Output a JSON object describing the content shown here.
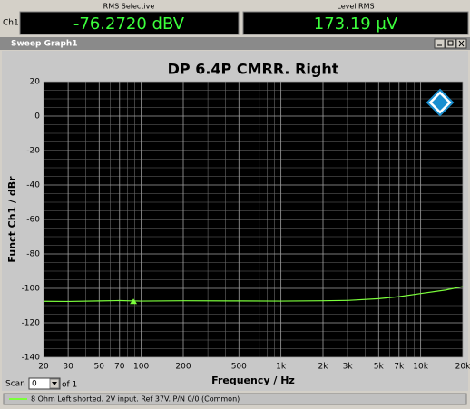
{
  "toolbar": {
    "channel": "Ch1",
    "readouts": [
      {
        "label": "RMS Selective",
        "value": "-76.2720 dBV"
      },
      {
        "label": "Level RMS",
        "value": "173.19 µV"
      }
    ]
  },
  "window": {
    "title": "Sweep Graph1"
  },
  "chart_data": {
    "type": "line",
    "title": "DP 6.4P CMRR. Right",
    "x_label": "Frequency / Hz",
    "y_label": "Funct Ch1 / dBr",
    "x_scale": "log",
    "grid": true,
    "x": [
      20,
      30,
      50,
      70,
      100,
      200,
      500,
      1000,
      2000,
      3000,
      5000,
      7000,
      10000,
      15000,
      20000
    ],
    "series": [
      {
        "name": "8 Ohm Left shorted. 2V input. Ref 37V. P/N 0/0 (Common)",
        "color": "#7cff3c",
        "values": [
          -107.5,
          -107.6,
          -107.3,
          -107.1,
          -107.4,
          -107.2,
          -107.3,
          -107.4,
          -107.2,
          -107,
          -106,
          -104.8,
          -103,
          -101,
          -99
        ]
      }
    ],
    "marker": {
      "x": 88,
      "y": -107.5
    },
    "xlim": [
      20,
      20000
    ],
    "ylim": [
      -140,
      20
    ],
    "xticks": [
      20,
      30,
      50,
      70,
      100,
      200,
      500,
      {
        "value": 1000,
        "label": "1k"
      },
      {
        "value": 2000,
        "label": "2k"
      },
      {
        "value": 3000,
        "label": "3k"
      },
      {
        "value": 5000,
        "label": "5k"
      },
      {
        "value": 7000,
        "label": "7k"
      },
      {
        "value": 10000,
        "label": "10k"
      },
      {
        "value": 20000,
        "label": "20k"
      }
    ],
    "xgrid_minor": [
      40,
      60,
      80,
      90,
      300,
      400,
      600,
      700,
      800,
      900,
      4000,
      6000,
      8000,
      9000
    ],
    "yticks": [
      20,
      0,
      -20,
      -40,
      -60,
      -80,
      -100,
      -120,
      -140
    ],
    "ygrid_minor": [
      15,
      10,
      5,
      -5,
      -10,
      -15,
      -25,
      -30,
      -35,
      -45,
      -50,
      -55,
      -65,
      -70,
      -75,
      -85,
      -90,
      -95,
      -105,
      -110,
      -115,
      -125,
      -130,
      -135
    ]
  },
  "footer": {
    "scan_label": "Scan",
    "scan_value": "0",
    "scan_of": "of 1"
  }
}
